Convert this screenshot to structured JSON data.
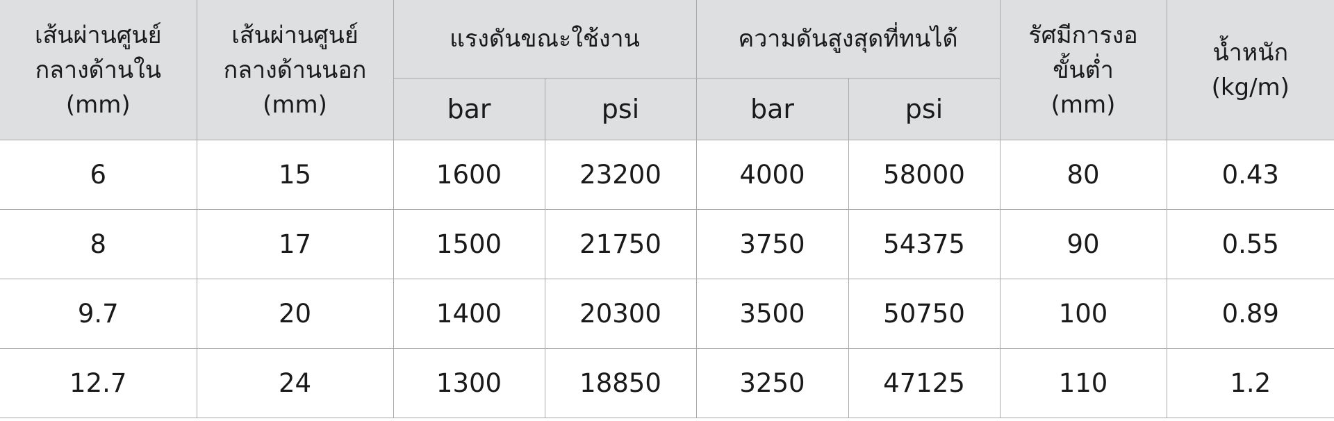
{
  "table": {
    "headers": {
      "inner_diameter": [
        "เส้นผ่านศูนย์",
        "กลางด้านใน",
        "(mm)"
      ],
      "outer_diameter": [
        "เส้นผ่านศูนย์",
        "กลางด้านนอก",
        "(mm)"
      ],
      "working_pressure": "แรงดันขณะใช้งาน",
      "burst_pressure": "ความดันสูงสุดที่ทนได้",
      "bend_radius": [
        "รัศมีการงอ",
        "ขั้นต่ำ",
        "(mm)"
      ],
      "weight": [
        "น้ำหนัก",
        "(kg/m)"
      ],
      "sub": [
        "bar",
        "psi",
        "bar",
        "psi"
      ]
    },
    "rows": [
      [
        "6",
        "15",
        "1600",
        "23200",
        "4000",
        "58000",
        "80",
        "0.43"
      ],
      [
        "8",
        "17",
        "1500",
        "21750",
        "3750",
        "54375",
        "90",
        "0.55"
      ],
      [
        "9.7",
        "20",
        "1400",
        "20300",
        "3500",
        "50750",
        "100",
        "0.89"
      ],
      [
        "12.7",
        "24",
        "1300",
        "18850",
        "3250",
        "47125",
        "110",
        "1.2"
      ]
    ]
  }
}
